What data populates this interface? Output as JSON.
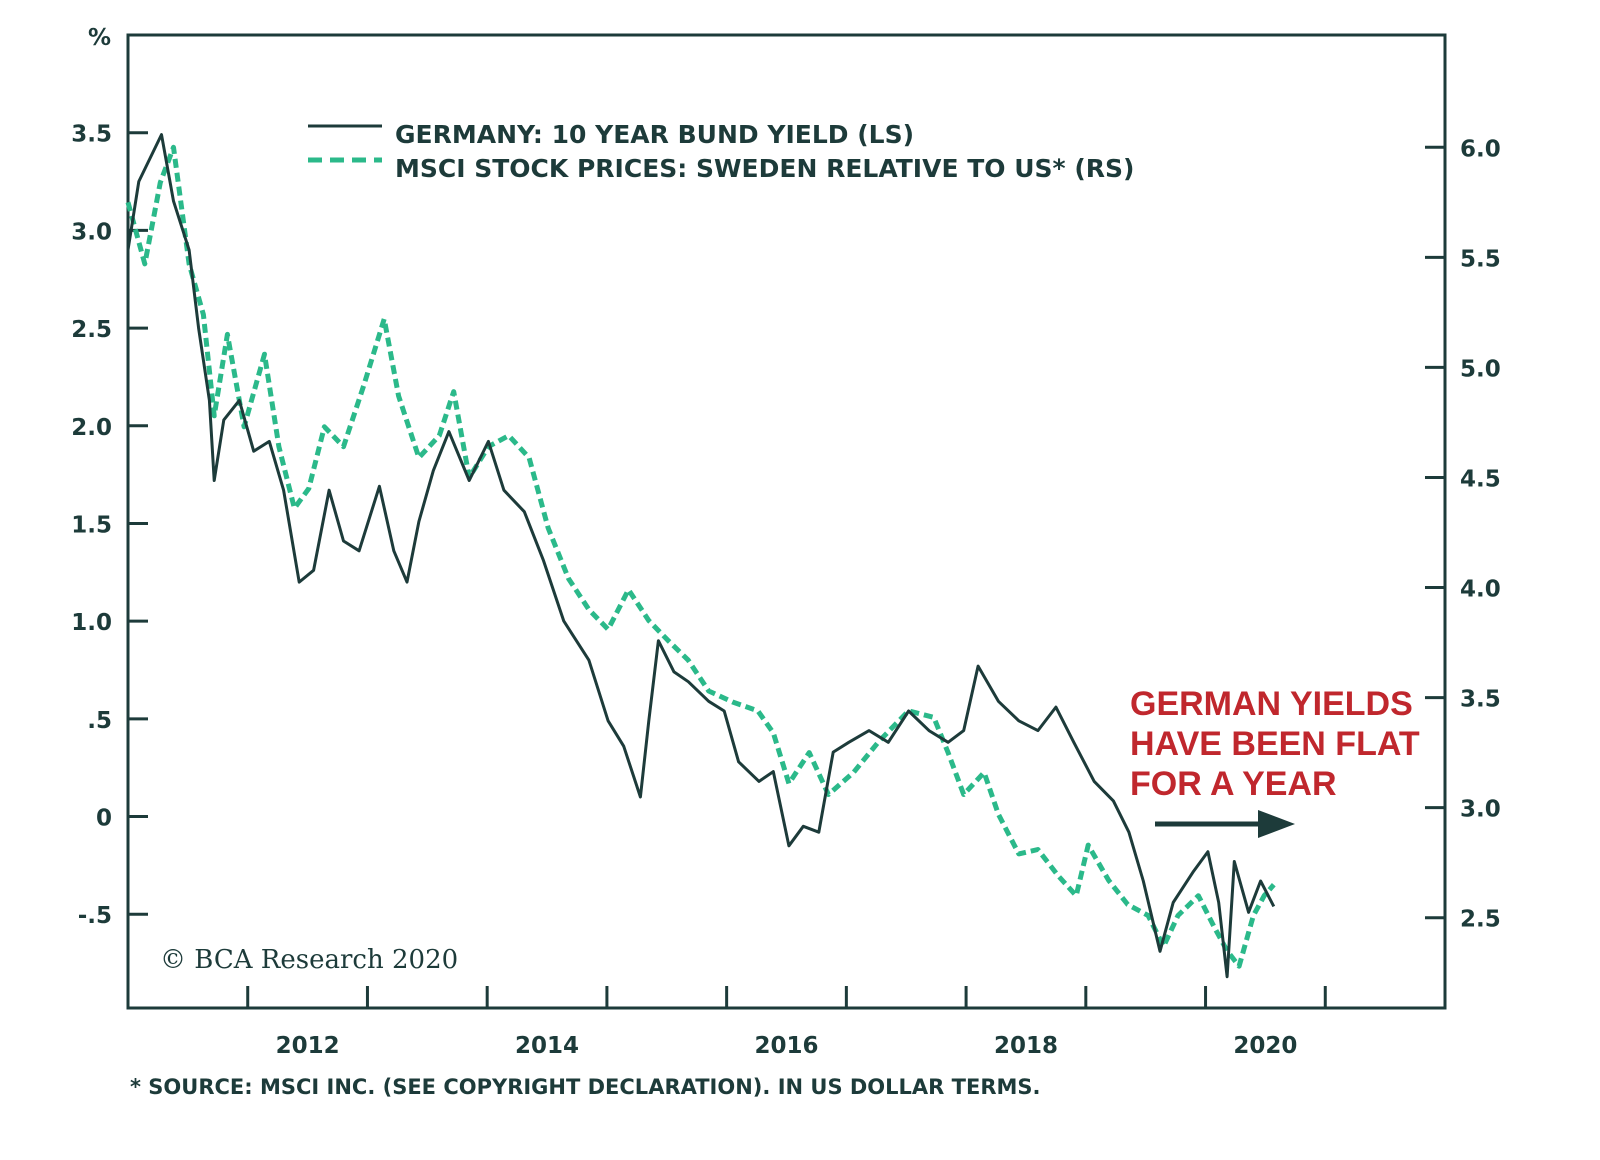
{
  "chart_data": {
    "type": "line",
    "left_unit_label": "%",
    "left_axis": {
      "ticks": [
        3.5,
        3.0,
        2.5,
        2.0,
        1.5,
        1.0,
        0.5,
        0,
        -0.5
      ],
      "tick_labels": [
        "3.5",
        "3.0",
        "2.5",
        "2.0",
        "1.5",
        "1.0",
        ".5",
        "0",
        "-.5"
      ],
      "ylim": [
        -0.98,
        4.0
      ]
    },
    "right_axis": {
      "ticks": [
        6.0,
        5.5,
        5.0,
        4.5,
        4.0,
        3.5,
        3.0,
        2.5
      ],
      "tick_labels": [
        "6.0",
        "5.5",
        "5.0",
        "4.5",
        "4.0",
        "3.5",
        "3.0",
        "2.5"
      ],
      "ylim": [
        2.09,
        6.51
      ]
    },
    "x_axis": {
      "xlim": [
        2011.0,
        2022.0
      ],
      "tick_years": [
        2012,
        2013,
        2014,
        2015,
        2016,
        2017,
        2018,
        2019,
        2020,
        2021
      ],
      "labels": [
        "2012",
        "2014",
        "2016",
        "2018",
        "2020"
      ],
      "label_years": [
        2012.5,
        2014.5,
        2016.5,
        2018.5,
        2020.5
      ]
    },
    "grid": false,
    "legend_placement": "top-center",
    "series": [
      {
        "name": "GERMANY: 10 YEAR BUND YIELD (LS)",
        "axis": "left",
        "color": "#1d3b3a",
        "style": "solid",
        "x": [
          2011.0,
          2011.09,
          2011.28,
          2011.38,
          2011.51,
          2011.59,
          2011.68,
          2011.72,
          2011.8,
          2011.93,
          2012.05,
          2012.18,
          2012.3,
          2012.43,
          2012.55,
          2012.68,
          2012.8,
          2012.93,
          2013.1,
          2013.22,
          2013.33,
          2013.43,
          2013.55,
          2013.68,
          2013.85,
          2014.01,
          2014.14,
          2014.31,
          2014.47,
          2014.64,
          2014.85,
          2015.01,
          2015.14,
          2015.28,
          2015.35,
          2015.43,
          2015.56,
          2015.68,
          2015.85,
          2015.98,
          2016.1,
          2016.27,
          2016.39,
          2016.52,
          2016.64,
          2016.77,
          2016.89,
          2017.02,
          2017.19,
          2017.35,
          2017.52,
          2017.69,
          2017.85,
          2017.98,
          2018.1,
          2018.27,
          2018.44,
          2018.6,
          2018.75,
          2018.9,
          2019.07,
          2019.23,
          2019.36,
          2019.48,
          2019.62,
          2019.73,
          2019.9,
          2020.02,
          2020.11,
          2020.18,
          2020.24,
          2020.36,
          2020.46,
          2020.57
        ],
        "values": [
          2.9,
          3.25,
          3.49,
          3.15,
          2.9,
          2.5,
          2.13,
          1.72,
          2.03,
          2.13,
          1.87,
          1.92,
          1.67,
          1.2,
          1.26,
          1.67,
          1.41,
          1.36,
          1.69,
          1.36,
          1.2,
          1.51,
          1.77,
          1.97,
          1.72,
          1.92,
          1.67,
          1.56,
          1.31,
          1.0,
          0.8,
          0.49,
          0.36,
          0.1,
          0.49,
          0.9,
          0.74,
          0.69,
          0.59,
          0.54,
          0.28,
          0.18,
          0.23,
          -0.15,
          -0.05,
          -0.08,
          0.33,
          0.38,
          0.44,
          0.38,
          0.54,
          0.44,
          0.38,
          0.44,
          0.77,
          0.59,
          0.49,
          0.44,
          0.56,
          0.38,
          0.18,
          0.08,
          -0.08,
          -0.33,
          -0.69,
          -0.44,
          -0.28,
          -0.18,
          -0.44,
          -0.82,
          -0.23,
          -0.49,
          -0.33,
          -0.46
        ]
      },
      {
        "name": "MSCI STOCK PRICES: SWEDEN RELATIVE TO US* (RS)",
        "axis": "right",
        "color": "#2bb98a",
        "style": "dashed",
        "x": [
          2011.0,
          2011.14,
          2011.27,
          2011.38,
          2011.51,
          2011.63,
          2011.72,
          2011.83,
          2011.97,
          2012.14,
          2012.26,
          2012.39,
          2012.51,
          2012.64,
          2012.8,
          2012.97,
          2013.14,
          2013.26,
          2013.43,
          2013.6,
          2013.72,
          2013.85,
          2014.01,
          2014.18,
          2014.35,
          2014.51,
          2014.68,
          2014.85,
          2015.01,
          2015.18,
          2015.35,
          2015.51,
          2015.68,
          2015.85,
          2016.05,
          2016.26,
          2016.39,
          2016.52,
          2016.69,
          2016.85,
          2017.06,
          2017.27,
          2017.52,
          2017.73,
          2017.85,
          2017.98,
          2018.15,
          2018.27,
          2018.44,
          2018.6,
          2018.77,
          2018.92,
          2019.02,
          2019.19,
          2019.35,
          2019.52,
          2019.65,
          2019.77,
          2019.94,
          2020.07,
          2020.18,
          2020.28,
          2020.4,
          2020.49,
          2020.57
        ],
        "values": [
          5.75,
          5.47,
          5.84,
          6.0,
          5.47,
          5.24,
          4.78,
          5.15,
          4.73,
          5.06,
          4.64,
          4.36,
          4.45,
          4.73,
          4.64,
          4.92,
          5.22,
          4.87,
          4.59,
          4.69,
          4.89,
          4.5,
          4.64,
          4.69,
          4.59,
          4.27,
          4.04,
          3.9,
          3.81,
          3.99,
          3.85,
          3.76,
          3.67,
          3.53,
          3.48,
          3.44,
          3.34,
          3.11,
          3.25,
          3.06,
          3.16,
          3.3,
          3.44,
          3.41,
          3.25,
          3.06,
          3.16,
          2.97,
          2.79,
          2.81,
          2.69,
          2.6,
          2.83,
          2.67,
          2.56,
          2.51,
          2.37,
          2.51,
          2.6,
          2.46,
          2.35,
          2.28,
          2.51,
          2.6,
          2.65
        ]
      }
    ],
    "annotation": {
      "lines": [
        "GERMAN YIELDS",
        "HAVE BEEN FLAT",
        "FOR A YEAR"
      ],
      "color": "#c0272d"
    },
    "source_note": "* SOURCE: MSCI INC. (SEE COPYRIGHT DECLARATION). IN US DOLLAR TERMS.",
    "copyright": "© BCA Research 2020"
  }
}
